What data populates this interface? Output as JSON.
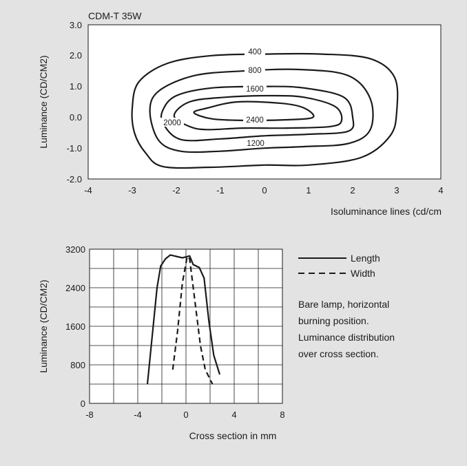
{
  "chart_data": [
    {
      "type": "contour",
      "title": "CDM-T 35W",
      "xlabel": "Isoluminance lines (cd/cm",
      "ylabel": "Luminance (CD/CM2)",
      "xlim": [
        -4,
        4
      ],
      "ylim": [
        -2.0,
        3.0
      ],
      "x_ticks": [
        "-4",
        "-3",
        "-2",
        "-1",
        "0",
        "1",
        "2",
        "3",
        "4"
      ],
      "y_ticks": [
        "3.0",
        "2.0",
        "1.0",
        "0.0",
        "-1.0",
        "-2.0"
      ],
      "grid": false,
      "contours": [
        {
          "level": "400",
          "points": [
            [
              -3.0,
              0.3
            ],
            [
              -2.85,
              1.15
            ],
            [
              -2.2,
              1.75
            ],
            [
              -1.2,
              2.0
            ],
            [
              0.0,
              2.05
            ],
            [
              1.3,
              2.05
            ],
            [
              2.4,
              1.9
            ],
            [
              2.95,
              1.3
            ],
            [
              3.0,
              0.2
            ],
            [
              2.85,
              -0.6
            ],
            [
              2.2,
              -1.3
            ],
            [
              1.0,
              -1.55
            ],
            [
              0.0,
              -1.55
            ],
            [
              -1.2,
              -1.62
            ],
            [
              -2.3,
              -1.6
            ],
            [
              -2.7,
              -1.15
            ],
            [
              -2.95,
              -0.5
            ],
            [
              -3.0,
              0.3
            ]
          ]
        },
        {
          "level": "800",
          "points": [
            [
              -2.6,
              0.2
            ],
            [
              -2.4,
              0.85
            ],
            [
              -1.6,
              1.35
            ],
            [
              -0.5,
              1.5
            ],
            [
              0.8,
              1.55
            ],
            [
              1.9,
              1.35
            ],
            [
              2.4,
              0.6
            ],
            [
              2.4,
              -0.4
            ],
            [
              1.9,
              -0.85
            ],
            [
              0.9,
              -0.95
            ],
            [
              0.0,
              -1.0
            ],
            [
              -1.0,
              -1.1
            ],
            [
              -1.9,
              -1.1
            ],
            [
              -2.4,
              -0.75
            ],
            [
              -2.6,
              0.2
            ]
          ]
        },
        {
          "level": "1600",
          "points": [
            [
              -2.3,
              0.25
            ],
            [
              -2.0,
              0.7
            ],
            [
              -1.2,
              0.95
            ],
            [
              0.0,
              1.0
            ],
            [
              0.9,
              0.95
            ],
            [
              1.8,
              0.65
            ],
            [
              2.0,
              0.0
            ],
            [
              1.9,
              -0.45
            ],
            [
              1.0,
              -0.55
            ],
            [
              0.0,
              -0.6
            ],
            [
              -1.0,
              -0.7
            ],
            [
              -1.9,
              -0.72
            ],
            [
              -2.3,
              -0.2
            ],
            [
              -2.3,
              0.25
            ]
          ]
        },
        {
          "level": "2000",
          "points": [
            [
              -2.05,
              0.05
            ],
            [
              -1.7,
              0.5
            ],
            [
              -0.9,
              0.65
            ],
            [
              0.1,
              0.7
            ],
            [
              0.9,
              0.65
            ],
            [
              1.6,
              0.35
            ],
            [
              1.75,
              -0.1
            ],
            [
              1.5,
              -0.3
            ],
            [
              0.5,
              -0.35
            ],
            [
              -0.5,
              -0.35
            ],
            [
              -1.3,
              -0.4
            ],
            [
              -1.7,
              -0.3
            ],
            [
              -2.05,
              0.05
            ]
          ]
        },
        {
          "level": "2400",
          "points": [
            [
              -1.6,
              0.15
            ],
            [
              -1.3,
              0.3
            ],
            [
              -0.6,
              0.5
            ],
            [
              0.4,
              0.45
            ],
            [
              0.9,
              0.3
            ],
            [
              1.1,
              0.0
            ],
            [
              0.5,
              -0.08
            ],
            [
              -0.5,
              -0.1
            ],
            [
              -1.2,
              -0.05
            ],
            [
              -1.6,
              0.15
            ]
          ]
        },
        {
          "level": "1200",
          "points": []
        }
      ]
    },
    {
      "type": "line",
      "xlabel": "Cross section in mm",
      "ylabel": "Luminance (CD/CM2)",
      "xlim": [
        -8,
        8
      ],
      "ylim": [
        0,
        3200
      ],
      "x_ticks": [
        "-8",
        "-4",
        "0",
        "4",
        "8"
      ],
      "y_ticks": [
        "3200",
        "2400",
        "1600",
        "800",
        "0"
      ],
      "grid": true,
      "legend": "right",
      "series": [
        {
          "name": "Length",
          "style": "solid",
          "x": [
            -3.2,
            -2.8,
            -2.4,
            -2.1,
            -1.7,
            -1.3,
            -0.8,
            -0.3,
            0.3,
            0.6,
            1.1,
            1.5,
            1.9,
            2.3,
            2.8
          ],
          "y": [
            400,
            1400,
            2400,
            2850,
            3000,
            3080,
            3050,
            3020,
            3060,
            2880,
            2820,
            2600,
            1700,
            1000,
            600
          ]
        },
        {
          "name": "Width",
          "style": "dashed",
          "x": [
            -1.1,
            -0.7,
            -0.3,
            0.1,
            0.3,
            0.7,
            1.2,
            1.6,
            2.2
          ],
          "y": [
            700,
            1500,
            2500,
            3050,
            3000,
            2200,
            1200,
            700,
            400
          ]
        }
      ]
    }
  ],
  "contour_labels": [
    "400",
    "800",
    "1600",
    "2000",
    "2400",
    "1200"
  ],
  "legend": {
    "length": "Length",
    "width": "Width"
  },
  "note_lines": [
    "Bare lamp, horizontal",
    "burning position.",
    "Luminance distribution",
    "over cross section."
  ]
}
